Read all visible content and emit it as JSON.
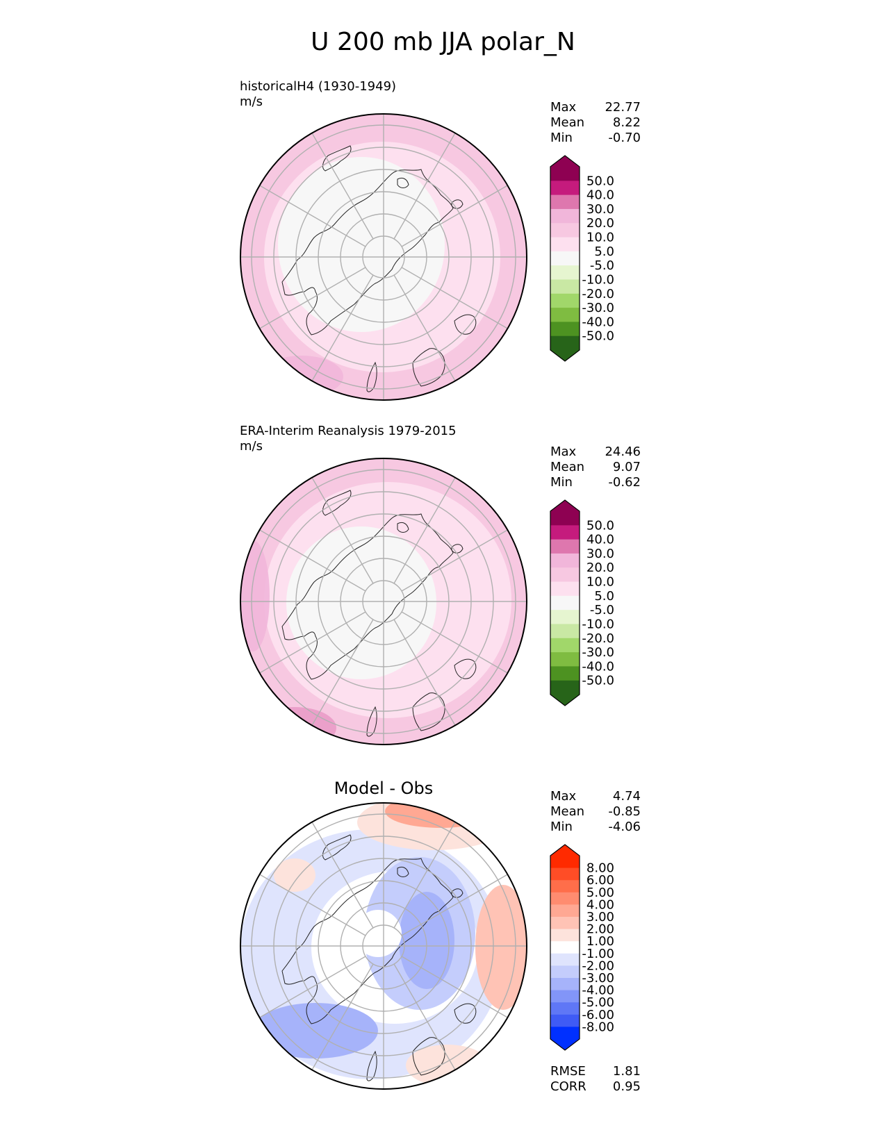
{
  "title": "U 200 mb JJA polar_N",
  "panels": [
    {
      "label": "historicalH4 (1930-1949)",
      "units": "m/s",
      "stats": [
        {
          "k": "Max",
          "v": "22.77"
        },
        {
          "k": "Mean",
          "v": "8.22"
        },
        {
          "k": "Min",
          "v": "-0.70"
        }
      ],
      "colorbar": {
        "labels": [
          "50.0",
          "40.0",
          "30.0",
          "20.0",
          "10.0",
          "5.0",
          "-5.0",
          "-10.0",
          "-20.0",
          "-30.0",
          "-40.0",
          "-50.0"
        ],
        "colors": [
          "#8e0152",
          "#c51b7d",
          "#de77ae",
          "#f1b6da",
          "#f7c8e1",
          "#fde0ef",
          "#f7f7f7",
          "#e6f5d0",
          "#c9e8a4",
          "#a1d76a",
          "#7fbc41",
          "#4d9221",
          "#276419"
        ]
      }
    },
    {
      "label": "ERA-Interim Reanalysis 1979-2015",
      "units": "m/s",
      "stats": [
        {
          "k": "Max",
          "v": "24.46"
        },
        {
          "k": "Mean",
          "v": "9.07"
        },
        {
          "k": "Min",
          "v": "-0.62"
        }
      ],
      "colorbar": {
        "labels": [
          "50.0",
          "40.0",
          "30.0",
          "20.0",
          "10.0",
          "5.0",
          "-5.0",
          "-10.0",
          "-20.0",
          "-30.0",
          "-40.0",
          "-50.0"
        ],
        "colors": [
          "#8e0152",
          "#c51b7d",
          "#de77ae",
          "#f1b6da",
          "#f7c8e1",
          "#fde0ef",
          "#f7f7f7",
          "#e6f5d0",
          "#c9e8a4",
          "#a1d76a",
          "#7fbc41",
          "#4d9221",
          "#276419"
        ]
      }
    },
    {
      "title": "Model - Obs",
      "stats": [
        {
          "k": "Max",
          "v": "4.74"
        },
        {
          "k": "Mean",
          "v": "-0.85"
        },
        {
          "k": "Min",
          "v": "-4.06"
        }
      ],
      "extra_stats": [
        {
          "k": "RMSE",
          "v": "1.81"
        },
        {
          "k": "CORR",
          "v": "0.95"
        }
      ],
      "colorbar": {
        "labels": [
          "8.00",
          "6.00",
          "5.00",
          "4.00",
          "3.00",
          "2.00",
          "1.00",
          "-1.00",
          "-2.00",
          "-3.00",
          "-4.00",
          "-5.00",
          "-6.00",
          "-8.00"
        ],
        "colors": [
          "#ff2a00",
          "#ff4d26",
          "#ff6e4a",
          "#ff8c70",
          "#ffa893",
          "#ffc3b5",
          "#fde3dc",
          "#ffffff",
          "#dfe4fd",
          "#c4cdfc",
          "#a6b3fa",
          "#8295f8",
          "#5f77f6",
          "#3f5bf5",
          "#0030ff"
        ]
      }
    }
  ],
  "chart_data": {
    "type": "heatmap",
    "projection": "north polar stereographic",
    "variable": "U 200 mb JJA polar_N",
    "maps": [
      {
        "label": "historicalH4 (1930-1949)",
        "units": "m/s",
        "max": 22.77,
        "mean": 8.22,
        "min": -0.7
      },
      {
        "label": "ERA-Interim Reanalysis 1979-2015",
        "units": "m/s",
        "max": 24.46,
        "mean": 9.07,
        "min": -0.62
      },
      {
        "label": "Model - Obs",
        "max": 4.74,
        "mean": -0.85,
        "min": -4.06,
        "rmse": 1.81,
        "corr": 0.95
      }
    ]
  }
}
